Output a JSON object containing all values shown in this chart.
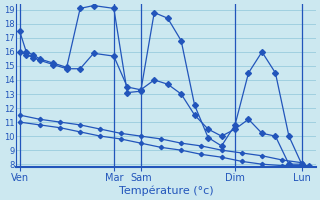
{
  "xlabel": "Température (°c)",
  "bg_color": "#cce8f0",
  "grid_color": "#99ccdd",
  "line_color": "#2255bb",
  "ylim": [
    7.8,
    19.4
  ],
  "yticks": [
    8,
    9,
    10,
    11,
    12,
    13,
    14,
    15,
    16,
    17,
    18,
    19
  ],
  "xtick_labels": [
    "Ven",
    "Mar",
    "Sam",
    "Dim",
    "Lun"
  ],
  "xtick_positions": [
    0,
    14,
    18,
    32,
    42
  ],
  "xlim": [
    -0.5,
    44
  ],
  "series": [
    {
      "x": [
        0,
        1,
        2,
        3,
        5,
        7,
        9,
        11,
        14,
        16,
        18,
        20,
        22,
        24,
        26,
        28,
        30,
        32,
        34,
        36,
        38,
        40,
        42,
        43
      ],
      "y": [
        17.5,
        16.0,
        15.8,
        15.5,
        15.2,
        14.9,
        19.1,
        19.3,
        19.1,
        13.1,
        13.2,
        18.8,
        18.4,
        16.8,
        12.2,
        9.9,
        9.3,
        10.8,
        14.5,
        16.0,
        14.5,
        10.0,
        7.9,
        7.9
      ]
    },
    {
      "x": [
        0,
        1,
        2,
        3,
        5,
        7,
        9,
        11,
        14,
        16,
        18,
        20,
        22,
        24,
        26,
        28,
        30,
        32,
        34,
        36,
        38,
        40,
        42
      ],
      "y": [
        16.0,
        15.8,
        15.6,
        15.4,
        15.1,
        14.8,
        14.8,
        15.9,
        15.7,
        13.5,
        13.3,
        14.0,
        13.7,
        13.0,
        11.5,
        10.5,
        10.0,
        10.5,
        11.2,
        10.2,
        10.0,
        8.0,
        8.0
      ]
    },
    {
      "x": [
        0,
        3,
        6,
        9,
        12,
        15,
        18,
        21,
        24,
        27,
        30,
        33,
        36,
        39,
        42
      ],
      "y": [
        11.5,
        11.2,
        11.0,
        10.8,
        10.5,
        10.2,
        10.0,
        9.8,
        9.5,
        9.3,
        9.0,
        8.8,
        8.6,
        8.3,
        8.1
      ]
    },
    {
      "x": [
        0,
        3,
        6,
        9,
        12,
        15,
        18,
        21,
        24,
        27,
        30,
        33,
        36,
        39,
        42
      ],
      "y": [
        11.0,
        10.8,
        10.6,
        10.3,
        10.0,
        9.8,
        9.5,
        9.2,
        9.0,
        8.7,
        8.5,
        8.2,
        8.0,
        7.9,
        7.9
      ]
    }
  ]
}
